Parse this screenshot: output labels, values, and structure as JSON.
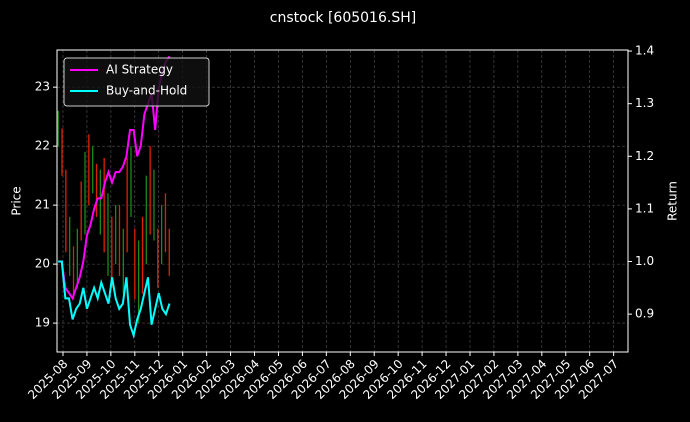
{
  "chart_data": {
    "type": "price-return",
    "title": "cnstock [605016.SH]",
    "ylabel": "Price",
    "y2label": "Return",
    "xlim": [
      -0.25,
      23.6
    ],
    "xticks": [
      {
        "value": 0,
        "label": "2025-08"
      },
      {
        "value": 1,
        "label": "2025-09"
      },
      {
        "value": 2,
        "label": "2025-10"
      },
      {
        "value": 3,
        "label": "2025-11"
      },
      {
        "value": 4,
        "label": "2025-12"
      },
      {
        "value": 5,
        "label": "2026-01"
      },
      {
        "value": 6,
        "label": "2026-02"
      },
      {
        "value": 7,
        "label": "2026-03"
      },
      {
        "value": 8,
        "label": "2026-04"
      },
      {
        "value": 9,
        "label": "2026-05"
      },
      {
        "value": 10,
        "label": "2026-06"
      },
      {
        "value": 11,
        "label": "2026-07"
      },
      {
        "value": 12,
        "label": "2026-08"
      },
      {
        "value": 13,
        "label": "2026-09"
      },
      {
        "value": 14,
        "label": "2026-10"
      },
      {
        "value": 15,
        "label": "2026-11"
      },
      {
        "value": 16,
        "label": "2026-12"
      },
      {
        "value": 17,
        "label": "2027-01"
      },
      {
        "value": 18,
        "label": "2027-02"
      },
      {
        "value": 19,
        "label": "2027-03"
      },
      {
        "value": 20,
        "label": "2027-04"
      },
      {
        "value": 21,
        "label": "2027-05"
      },
      {
        "value": 22,
        "label": "2027-06"
      },
      {
        "value": 23,
        "label": "2027-07"
      }
    ],
    "ylim": [
      18.51,
      23.63
    ],
    "yticks": [
      19,
      20,
      21,
      22,
      23
    ],
    "y2lim": [
      0.828,
      1.402
    ],
    "y2ticks": [
      0.9,
      {
        "value": 1,
        "label": "1.0"
      },
      1.1,
      1.2,
      1.3,
      1.4
    ],
    "grid": true,
    "legend": "upper left",
    "price": {
      "up_color": "#1a8a1a",
      "down_color": "#e02000",
      "x": [
        -0.2,
        -0.04,
        0.12,
        0.28,
        0.44,
        0.6,
        0.76,
        0.92,
        1.08,
        1.24,
        1.4,
        1.56,
        1.72,
        1.88,
        2.04,
        2.2,
        2.36,
        2.52,
        2.68,
        2.84,
        3.0,
        3.16,
        3.32,
        3.48,
        3.64,
        3.8,
        3.96,
        4.12,
        4.28,
        4.44
      ],
      "open": [
        22.0,
        22.3,
        21.6,
        19.8,
        20.3,
        19.6,
        21.4,
        20.5,
        22.2,
        21.2,
        21.7,
        20.5,
        21.8,
        19.8,
        20.8,
        20.0,
        21.0,
        19.5,
        21.8,
        20.8,
        20.6,
        19.0,
        20.8,
        20.0,
        22.0,
        20.4,
        20.6,
        20.0,
        21.2,
        20.6
      ],
      "close": [
        22.6,
        21.5,
        20.2,
        20.8,
        19.4,
        20.6,
        20.4,
        21.9,
        21.0,
        22.0,
        20.8,
        21.6,
        20.2,
        21.2,
        19.6,
        21.0,
        19.8,
        20.6,
        20.2,
        22.0,
        19.4,
        20.4,
        19.5,
        21.5,
        20.5,
        21.6,
        19.6,
        21.0,
        20.2,
        19.8
      ]
    },
    "series": [
      {
        "name": "AI Strategy",
        "color": "#ff00ff",
        "axis": "y2",
        "x": [
          -0.2,
          -0.05,
          0.1,
          0.25,
          0.4,
          0.55,
          0.7,
          0.85,
          1.0,
          1.15,
          1.3,
          1.45,
          1.6,
          1.75,
          1.9,
          2.05,
          2.2,
          2.35,
          2.5,
          2.65,
          2.8,
          2.95,
          3.1,
          3.25,
          3.4,
          3.55,
          3.7,
          3.85,
          4.0,
          4.15,
          4.3,
          4.45
        ],
        "values": [
          1.0,
          1.0,
          0.95,
          0.94,
          0.93,
          0.95,
          0.97,
          1.0,
          1.05,
          1.07,
          1.1,
          1.12,
          1.12,
          1.15,
          1.17,
          1.15,
          1.17,
          1.17,
          1.18,
          1.2,
          1.25,
          1.25,
          1.2,
          1.22,
          1.28,
          1.3,
          1.32,
          1.25,
          1.33,
          1.36,
          1.38,
          1.39
        ]
      },
      {
        "name": "Buy-and-Hold",
        "color": "#00ffff",
        "axis": "y2",
        "x": [
          -0.2,
          -0.05,
          0.1,
          0.25,
          0.4,
          0.55,
          0.7,
          0.85,
          1.0,
          1.15,
          1.3,
          1.45,
          1.6,
          1.75,
          1.9,
          2.05,
          2.2,
          2.35,
          2.5,
          2.65,
          2.8,
          2.95,
          3.1,
          3.25,
          3.4,
          3.55,
          3.7,
          3.85,
          4.0,
          4.15,
          4.3,
          4.45
        ],
        "values": [
          1.0,
          1.0,
          0.93,
          0.93,
          0.89,
          0.91,
          0.92,
          0.95,
          0.91,
          0.93,
          0.95,
          0.93,
          0.96,
          0.94,
          0.92,
          0.97,
          0.93,
          0.91,
          0.92,
          0.97,
          0.88,
          0.86,
          0.89,
          0.91,
          0.94,
          0.97,
          0.88,
          0.91,
          0.94,
          0.91,
          0.9,
          0.92
        ]
      }
    ]
  }
}
